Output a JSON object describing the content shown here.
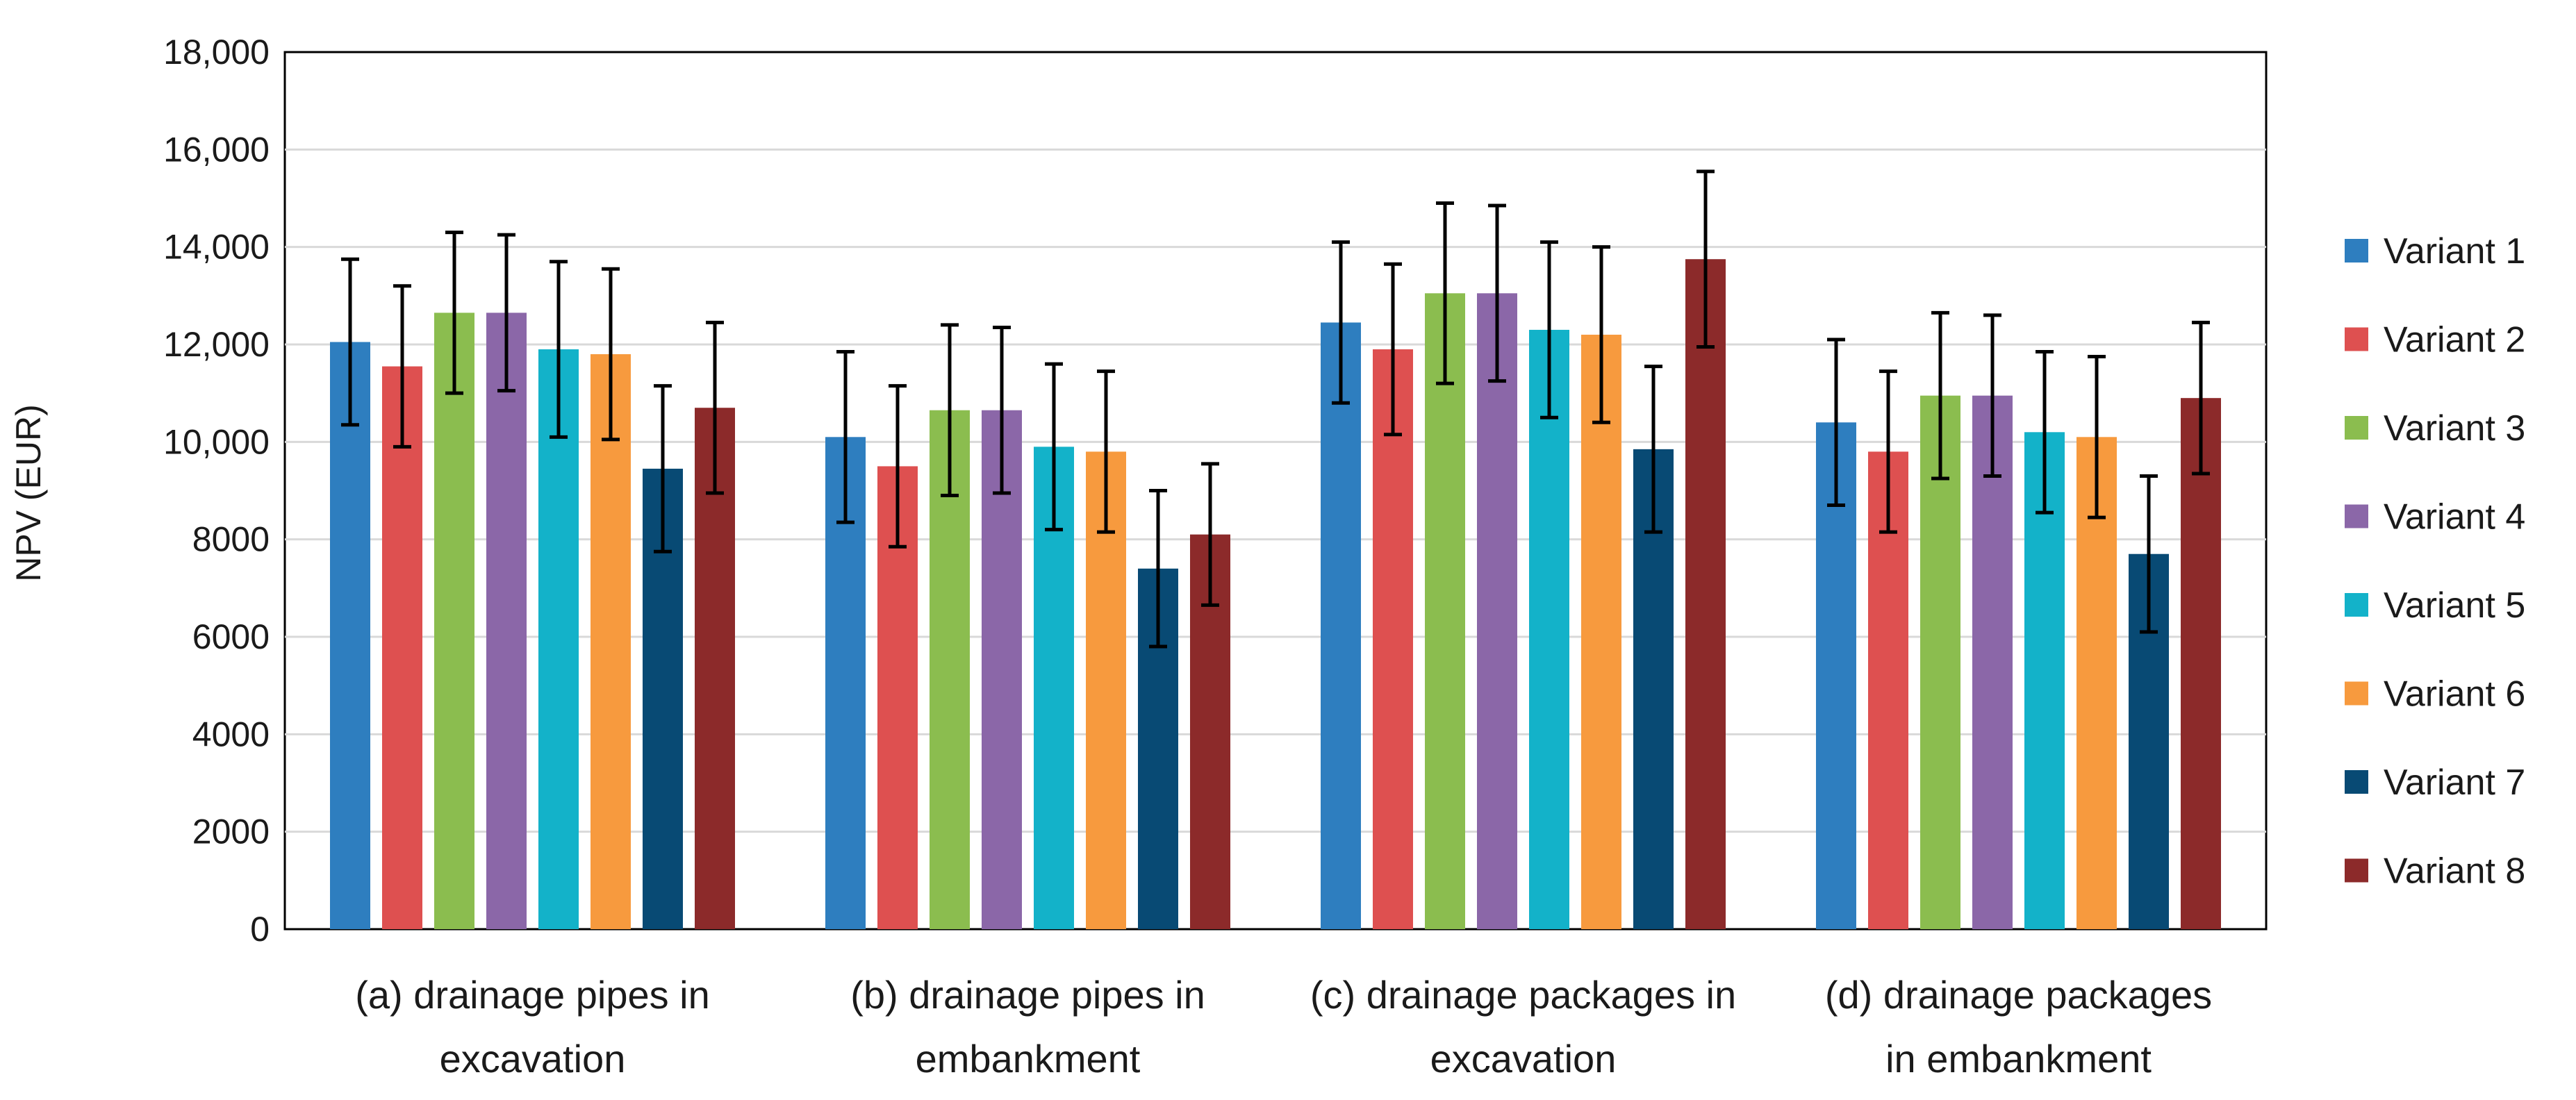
{
  "chart_data": {
    "type": "bar",
    "title": "",
    "xlabel": "",
    "ylabel": "NPV (EUR)",
    "ylim": [
      0,
      18000
    ],
    "y_ticks": [
      {
        "value": 0,
        "label": "0"
      },
      {
        "value": 2000,
        "label": "2000"
      },
      {
        "value": 4000,
        "label": "4000"
      },
      {
        "value": 6000,
        "label": "6000"
      },
      {
        "value": 8000,
        "label": "8000"
      },
      {
        "value": 10000,
        "label": "10,000"
      },
      {
        "value": 12000,
        "label": "12,000"
      },
      {
        "value": 14000,
        "label": "14,000"
      },
      {
        "value": 16000,
        "label": "16,000"
      },
      {
        "value": 18000,
        "label": "18,000"
      }
    ],
    "grid": true,
    "legend_position": "right",
    "categories": [
      [
        "(a) drainage pipes in",
        "excavation"
      ],
      [
        "(b) drainage pipes in",
        "embankment"
      ],
      [
        "(c) drainage packages in",
        "excavation"
      ],
      [
        "(d) drainage packages",
        "in embankment"
      ]
    ],
    "series": [
      {
        "name": "Variant 1",
        "color": "#2e7ebf",
        "values": [
          12050,
          10100,
          12450,
          10400
        ],
        "error": [
          1700,
          1750,
          1650,
          1700
        ]
      },
      {
        "name": "Variant 2",
        "color": "#de5050",
        "values": [
          11550,
          9500,
          11900,
          9800
        ],
        "error": [
          1650,
          1650,
          1750,
          1650
        ]
      },
      {
        "name": "Variant 3",
        "color": "#8bbd4f",
        "values": [
          12650,
          10650,
          13050,
          10950
        ],
        "error": [
          1650,
          1750,
          1850,
          1700
        ]
      },
      {
        "name": "Variant 4",
        "color": "#8b67a8",
        "values": [
          12650,
          10650,
          13050,
          10950
        ],
        "error": [
          1600,
          1700,
          1800,
          1650
        ]
      },
      {
        "name": "Variant 5",
        "color": "#13b2c9",
        "values": [
          11900,
          9900,
          12300,
          10200
        ],
        "error": [
          1800,
          1700,
          1800,
          1650
        ]
      },
      {
        "name": "Variant 6",
        "color": "#f79a3e",
        "values": [
          11800,
          9800,
          12200,
          10100
        ],
        "error": [
          1750,
          1650,
          1800,
          1650
        ]
      },
      {
        "name": "Variant 7",
        "color": "#084a74",
        "values": [
          9450,
          7400,
          9850,
          7700
        ],
        "error": [
          1700,
          1600,
          1700,
          1600
        ]
      },
      {
        "name": "Variant 8",
        "color": "#8c2a2a",
        "values": [
          10700,
          8100,
          13750,
          10900
        ],
        "error": [
          1750,
          1450,
          1800,
          1550
        ]
      }
    ]
  }
}
